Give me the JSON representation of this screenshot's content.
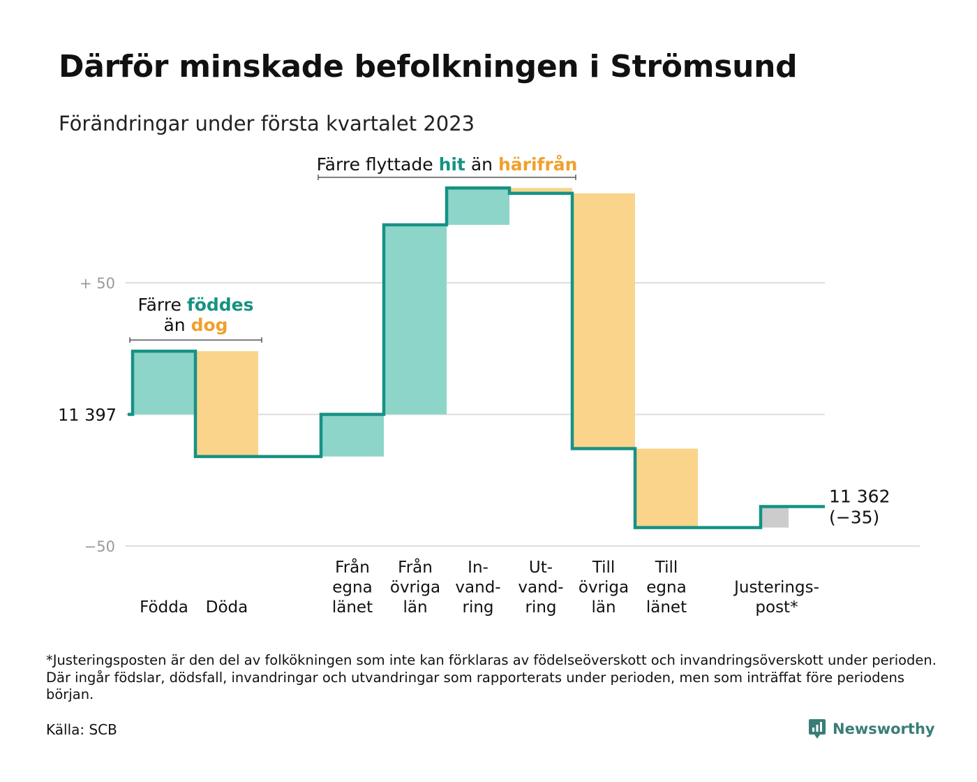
{
  "title": "Därför minskade befolkningen i Strömsund",
  "subtitle": "Förändringar under första kvartalet 2023",
  "colors": {
    "increase": "#8dd4c9",
    "decrease": "#f9d48a",
    "adjustment": "#cccccc",
    "line": "#169283",
    "accent_green": "#169283",
    "accent_orange": "#f0a02c",
    "grid": "#dddddd",
    "tick_text": "#9a9a9a"
  },
  "chart_data": {
    "type": "waterfall",
    "title": "Därför minskade befolkningen i Strömsund",
    "subtitle": "Förändringar under första kvartalet 2023",
    "baseline": 11397,
    "baseline_label": "11 397",
    "ylim": [
      -50,
      68
    ],
    "y_ticks": [
      {
        "value": 50,
        "label": "+ 50"
      },
      {
        "value": 0,
        "label": ""
      },
      {
        "value": -50,
        "label": "−50"
      }
    ],
    "steps": [
      {
        "label": "Födda",
        "change": 24,
        "kind": "increase"
      },
      {
        "label": "Döda",
        "change": -40,
        "kind": "decrease"
      },
      {
        "label": "",
        "change": 0,
        "kind": "gap"
      },
      {
        "label": "Från\negna\nlänet",
        "change": 16,
        "kind": "increase"
      },
      {
        "label": "Från\növriga\nlän",
        "change": 72,
        "kind": "increase"
      },
      {
        "label": "In-\nvand-\nring",
        "change": 14,
        "kind": "increase"
      },
      {
        "label": "Ut-\nvand-\nring",
        "change": -2,
        "kind": "decrease"
      },
      {
        "label": "Till\növriga\nlän",
        "change": -97,
        "kind": "decrease"
      },
      {
        "label": "Till\negna\nlänet",
        "change": -30,
        "kind": "decrease"
      },
      {
        "label": "",
        "change": 0,
        "kind": "gap"
      },
      {
        "label": "Justerings-\npost*",
        "change": 8,
        "kind": "adjustment"
      }
    ],
    "end_label_value": "11 362",
    "end_label_change": "(−35)",
    "annotations": [
      {
        "parts": [
          {
            "text": "Färre ",
            "style": "plain"
          },
          {
            "text": "föddes",
            "style": "green"
          }
        ],
        "line2": [
          {
            "text": "än ",
            "style": "plain"
          },
          {
            "text": "dog",
            "style": "orange"
          }
        ],
        "from_step": 0,
        "to_step": 1
      },
      {
        "parts": [
          {
            "text": "Färre flyttade ",
            "style": "plain"
          },
          {
            "text": "hit",
            "style": "green"
          },
          {
            "text": " än ",
            "style": "plain"
          },
          {
            "text": "härifrån",
            "style": "orange"
          }
        ],
        "from_step": 3,
        "to_step": 6
      }
    ]
  },
  "footnote": "*Justeringsposten är den del av folkökningen som inte kan förklaras av födelseöverskott och invandringsöverskott under perioden. Där ingår födslar, dödsfall, invandringar och utvandringar som rapporterats under perioden, men som inträffat före periodens början.",
  "source": "Källa: SCB",
  "brand": {
    "name": "Newsworthy",
    "icon": "newsworthy-logo-icon"
  }
}
